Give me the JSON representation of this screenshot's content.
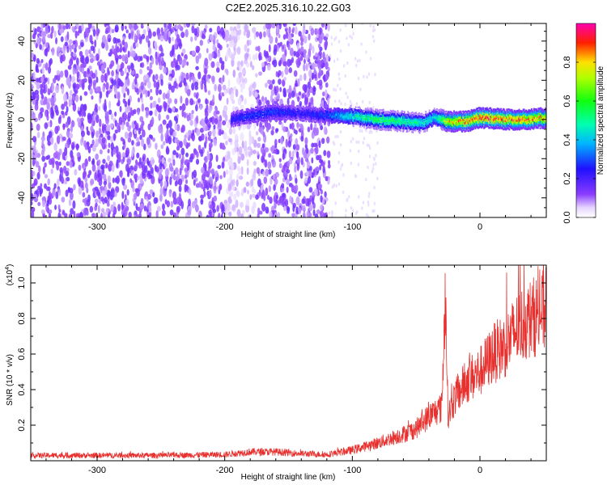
{
  "figure_title": "C2E2.2025.316.10.22.G03",
  "colors": {
    "snr_line": "#e8302e",
    "ridge": "#ff2a00",
    "noise": "#6a1fe0",
    "background": "#ffffff"
  },
  "chart_data": [
    {
      "type": "heatmap",
      "title": "C2E2.2025.316.10.22.G03",
      "xlabel": "Height of straight line (km)",
      "ylabel": "Frequency (Hz)",
      "xlim": [
        -352,
        52
      ],
      "ylim": [
        -50,
        49
      ],
      "xticks": [
        -300,
        -200,
        -100,
        0
      ],
      "xtick_labels": [
        "-300",
        "-200",
        "-100",
        "0"
      ],
      "yticks": [
        -40,
        -20,
        0,
        20,
        40
      ],
      "ytick_labels": [
        "-40",
        "-20",
        "0",
        "20",
        "40"
      ],
      "colorbar": {
        "label": "Normalized spectral amplitude",
        "range": [
          0,
          1
        ],
        "ticks": [
          0,
          0.2,
          0.4,
          0.6,
          0.8
        ],
        "tick_labels": [
          "0.0",
          "0.2",
          "0.4",
          "0.6",
          "0.8"
        ],
        "colormap": "rainbow (violet-blue-cyan-green-yellow-red-magenta)"
      },
      "ridge": {
        "description": "high amplitude ridge near 0 Hz",
        "x": [
          -195,
          -180,
          -160,
          -140,
          -120,
          -105,
          -80,
          -60,
          -45,
          -35,
          -25,
          -10,
          0,
          20,
          40,
          52
        ],
        "y": [
          0,
          2,
          4,
          3,
          2,
          2,
          0,
          -1,
          -2,
          1,
          -1,
          -1,
          1,
          0,
          0,
          1
        ],
        "amplitude": [
          0.25,
          0.3,
          0.3,
          0.25,
          0.3,
          0.45,
          0.6,
          0.55,
          0.5,
          0.45,
          0.8,
          0.9,
          0.95,
          0.9,
          0.9,
          0.85
        ]
      },
      "noise_region": {
        "dense_x_range": [
          -352,
          -118
        ],
        "faint_x_range": [
          -118,
          -100
        ]
      }
    },
    {
      "type": "line",
      "xlabel": "Height of straight line (km)",
      "ylabel": "SNR (10 * v/v)",
      "scale_label": "(x10",
      "scale_exponent": "4",
      "scale_suffix": ")",
      "xlim": [
        -352,
        52
      ],
      "ylim": [
        0,
        1.1
      ],
      "xticks": [
        -300,
        -200,
        -100,
        0
      ],
      "xtick_labels": [
        "-300",
        "-200",
        "-100",
        "0"
      ],
      "yticks": [
        0.2,
        0.4,
        0.6,
        0.8,
        1.0
      ],
      "ytick_labels": [
        "0.2",
        "0.4",
        "0.6",
        "0.8",
        "1.0"
      ],
      "series": [
        {
          "name": "SNR",
          "x": [
            -352,
            -300,
            -250,
            -200,
            -180,
            -160,
            -140,
            -120,
            -100,
            -80,
            -60,
            -50,
            -40,
            -30,
            -27,
            -25,
            -20,
            -10,
            0,
            10,
            20,
            30,
            40,
            52
          ],
          "y": [
            0.03,
            0.03,
            0.03,
            0.035,
            0.05,
            0.05,
            0.04,
            0.035,
            0.06,
            0.1,
            0.15,
            0.18,
            0.25,
            0.3,
            0.95,
            0.25,
            0.35,
            0.45,
            0.5,
            0.6,
            0.65,
            0.75,
            0.8,
            0.85
          ]
        }
      ]
    }
  ]
}
